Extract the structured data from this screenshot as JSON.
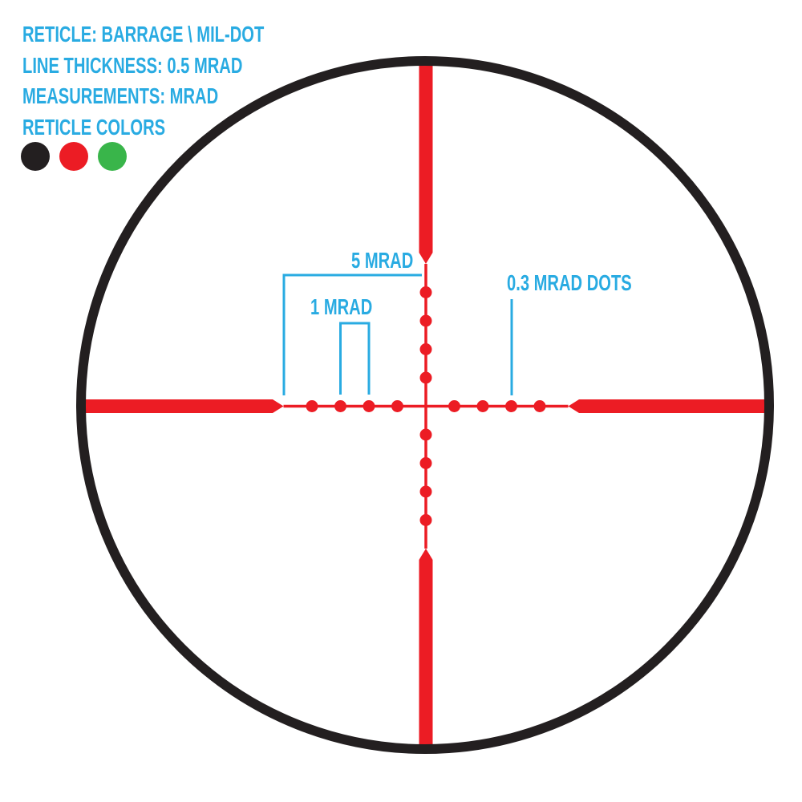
{
  "title": "Reticle specification diagram",
  "colors": {
    "blue": "#29ABE2",
    "red": "#EC1C24",
    "green": "#39B54A",
    "black": "#231F20",
    "background": "#FFFFFF"
  },
  "header": {
    "lines": [
      "RETICLE: BARRAGE \\ MIL-DOT",
      "LINE THICKNESS: 0.5 MRAD",
      "MEASUREMENTS: MRAD",
      "RETICLE COLORS"
    ],
    "color_swatches": [
      {
        "name": "black",
        "hex": "#231F20"
      },
      {
        "name": "red",
        "hex": "#EC1C24"
      },
      {
        "name": "green",
        "hex": "#39B54A"
      }
    ]
  },
  "annotations": {
    "five_mrad_label": "5 MRAD",
    "one_mrad_label": "1 MRAD",
    "dot_size_label": "0.3 MRAD DOTS"
  },
  "reticle": {
    "name": "BARRAGE \\ MIL-DOT",
    "line_thickness_mrad": 0.5,
    "measurement_unit": "MRAD",
    "dot_size_mrad": 0.3,
    "dot_offsets_mrad": [
      1,
      2,
      3,
      4
    ],
    "post_start_mrad": 5
  }
}
